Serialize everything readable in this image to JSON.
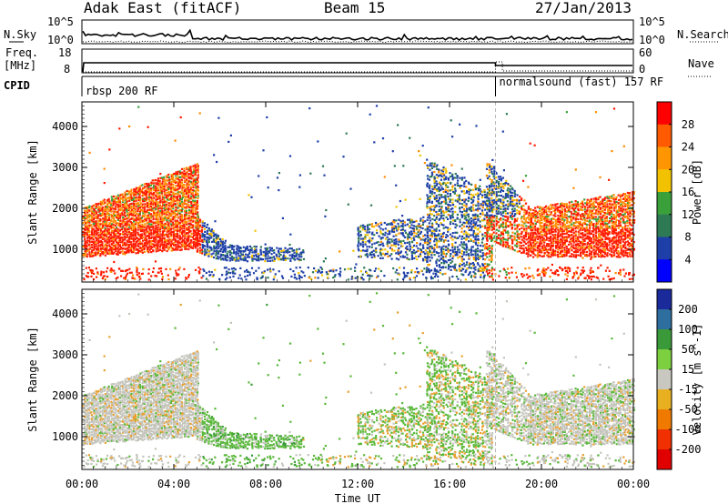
{
  "header": {
    "station": "Adak East (fitACF)",
    "beam": "Beam 15",
    "date": "27/Jan/2013"
  },
  "top_panels": {
    "nsky_label": "N.Sky",
    "nsearch_label": "N.Search",
    "nsky_ticks": [
      "10^5",
      "10^0"
    ],
    "nsearch_ticks": [
      "10^5",
      "10^0"
    ],
    "freq_label": "Freq.",
    "freq_unit": "[MHz]",
    "freq_ticks": [
      "18",
      "8"
    ],
    "nave_label": "Nave",
    "nave_ticks": [
      "60",
      "0"
    ],
    "cpid_label": "CPID",
    "cpid_segments": [
      {
        "label": "rbsp 200 RF",
        "start_hour": 0
      },
      {
        "label": "normalsound (fast) 157 RF",
        "start_hour": 18
      }
    ]
  },
  "chart_data": [
    {
      "type": "heatmap",
      "name": "power",
      "ylabel": "Slant Range [km]",
      "yticks": [
        1000,
        2000,
        3000,
        4000
      ],
      "ylim": [
        200,
        4600
      ],
      "xlim": [
        0,
        24
      ],
      "colorbar": {
        "label": "Power [dB]",
        "ticks": [
          "28",
          "24",
          "20",
          "16",
          "12",
          "8",
          "4"
        ],
        "colors": [
          "#ff0000",
          "#ff5a00",
          "#ff9600",
          "#f2c200",
          "#3aa03a",
          "#2e7a55",
          "#1e3fa8",
          "#0000ff"
        ]
      }
    },
    {
      "type": "heatmap",
      "name": "velocity",
      "ylabel": "Slant Range [km]",
      "yticks": [
        1000,
        2000,
        3000,
        4000
      ],
      "ylim": [
        200,
        4600
      ],
      "xlim": [
        0,
        24
      ],
      "colorbar": {
        "label": "Velocity [m s^-1]",
        "ticks": [
          "200",
          "100",
          "50",
          "15",
          "-15",
          "-50",
          "-100",
          "-200"
        ],
        "colors": [
          "#1a2a9a",
          "#2e6e9e",
          "#3a9a3a",
          "#7cd040",
          "#c8c8c0",
          "#e8b020",
          "#f07a00",
          "#f03000",
          "#e00000"
        ]
      }
    }
  ],
  "xaxis": {
    "label": "Time UT",
    "ticks": [
      "00:00",
      "04:00",
      "08:00",
      "12:00",
      "16:00",
      "20:00",
      "00:00"
    ]
  },
  "colors": {
    "power_red": "#ff1a00",
    "power_orange": "#ff8c00",
    "power_blue": "#1e3fa8",
    "vel_gray": "#c4c4bc",
    "vel_green": "#5ab83a",
    "vel_orange": "#e8a030"
  }
}
